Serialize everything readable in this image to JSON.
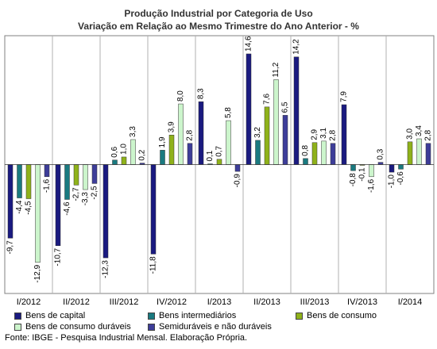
{
  "title": "Produção Industrial por Categoria de Uso",
  "subtitle": "Variação em Relação ao Mesmo Trimestre do Ano Anterior - %",
  "source": "Fonte: IBGE - Pesquisa Industrial Mensal. Elaboração Própria.",
  "chart_data": {
    "type": "bar",
    "categories": [
      "I/2012",
      "II/2012",
      "III/2012",
      "IV/2012",
      "I/2013",
      "II/2013",
      "III/2013",
      "IV/2013",
      "I/2014"
    ],
    "series": [
      {
        "name": "Bens de capital",
        "color": "#1a1a80",
        "values": [
          -9.7,
          -10.7,
          -12.3,
          -11.8,
          8.3,
          14.6,
          14.2,
          7.9,
          -1.0
        ]
      },
      {
        "name": "Bens intermediários",
        "color": "#1a7a80",
        "values": [
          -4.4,
          -4.6,
          0.6,
          1.9,
          0.1,
          3.2,
          0.8,
          -0.8,
          -0.6
        ]
      },
      {
        "name": "Bens de consumo",
        "color": "#8fb21a",
        "values": [
          -4.5,
          -2.7,
          1.0,
          3.9,
          0.7,
          7.6,
          2.9,
          -0.1,
          3.0
        ]
      },
      {
        "name": "Bens de consumo duráveis",
        "color": "#ccf5cc",
        "values": [
          -12.9,
          -3.3,
          3.3,
          8.0,
          5.8,
          11.2,
          3.1,
          -1.6,
          3.4
        ]
      },
      {
        "name": "Semiduráveis e não duráveis",
        "color": "#3d3d99",
        "values": [
          -1.6,
          -2.5,
          0.2,
          2.8,
          -0.9,
          6.5,
          2.8,
          0.3,
          2.8
        ]
      }
    ],
    "value_labels": [
      [
        "-9,7",
        "-4,4",
        "-4,5",
        "-12,9",
        "-1,6"
      ],
      [
        "-10,7",
        "-4,6",
        "-2,7",
        "-3,3",
        "-2,5"
      ],
      [
        "-12,3",
        "0,6",
        "1,0",
        "3,3",
        "0,2"
      ],
      [
        "-11,8",
        "1,9",
        "3,9",
        "8,0",
        "2,8"
      ],
      [
        "8,3",
        "0,1",
        "0,7",
        "5,8",
        "-0,9"
      ],
      [
        "14,6",
        "3,2",
        "7,6",
        "11,2",
        "6,5"
      ],
      [
        "14,2",
        "0,8",
        "2,9",
        "3,1",
        "2,8"
      ],
      [
        "7,9",
        "-0,8",
        "-0,1",
        "-1,6",
        "0,3"
      ],
      [
        "-1,0",
        "-0,6",
        "3,0",
        "3,4",
        "2,8"
      ]
    ],
    "ylim": [
      -17,
      17
    ],
    "grid": "vertical separators between categories",
    "legend_position": "bottom"
  }
}
